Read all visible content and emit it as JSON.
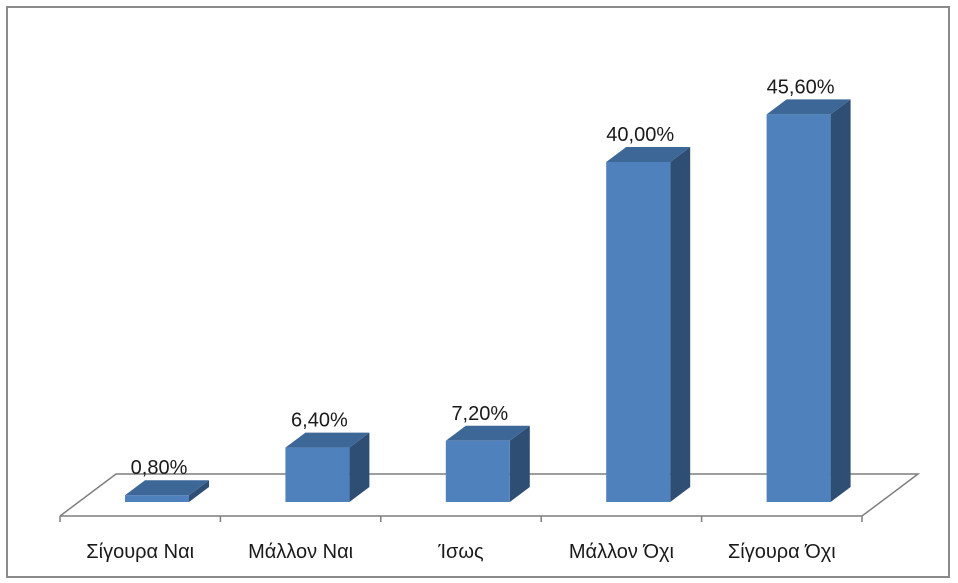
{
  "chart_data": {
    "type": "bar",
    "categories": [
      "Σίγουρα Ναι",
      "Μάλλον Ναι",
      "Ίσως",
      "Μάλλον Όχι",
      "Σίγουρα Όχι"
    ],
    "values": [
      0.8,
      6.4,
      7.2,
      40.0,
      45.6
    ],
    "data_labels": [
      "0,80%",
      "6,40%",
      "7,20%",
      "40,00%",
      "45,60%"
    ],
    "unit": "%",
    "style": "3d-column",
    "ylim": [
      0,
      50
    ],
    "grid": false,
    "legend": "none",
    "colors": {
      "bar_front": "#4f81bd",
      "bar_top": "#3d6797",
      "bar_side": "#2f4e74",
      "floor_line": "#7f7f7f"
    }
  }
}
